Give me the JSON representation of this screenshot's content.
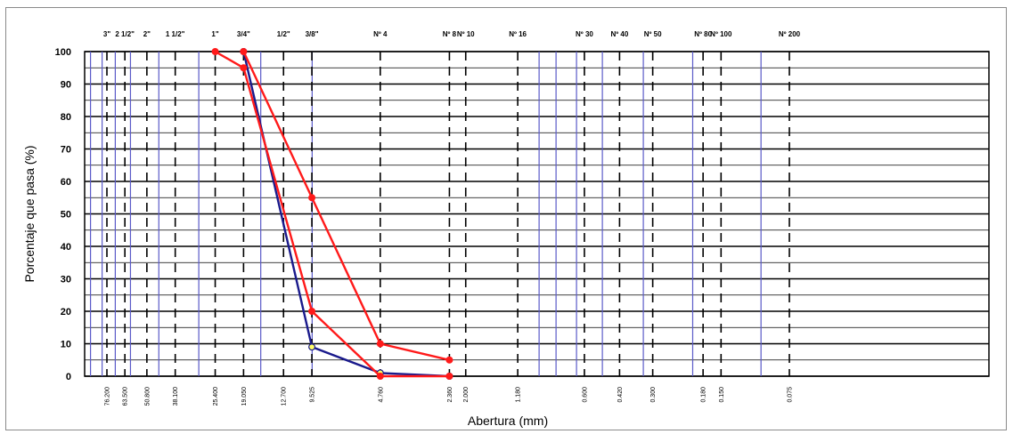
{
  "chart_data": {
    "type": "line",
    "xlabel": "Abertura (mm)",
    "ylabel": "Porcentaje que pasa (%)",
    "x_scale": "log",
    "ylim": [
      0,
      100
    ],
    "yticks": [
      0,
      10,
      20,
      30,
      40,
      50,
      60,
      70,
      80,
      90,
      100
    ],
    "grid": true,
    "sieves": [
      {
        "name": "3\"",
        "opening": "76.200",
        "value": 76.2
      },
      {
        "name": "2 1/2\"",
        "opening": "63.500",
        "value": 63.5
      },
      {
        "name": "2\"",
        "opening": "50.800",
        "value": 50.8
      },
      {
        "name": "1 1/2\"",
        "opening": "38.100",
        "value": 38.1
      },
      {
        "name": "1\"",
        "opening": "25.400",
        "value": 25.4
      },
      {
        "name": "3/4\"",
        "opening": "19.050",
        "value": 19.05
      },
      {
        "name": "1/2\"",
        "opening": "12.700",
        "value": 12.7
      },
      {
        "name": "3/8\"",
        "opening": "9.525",
        "value": 9.525
      },
      {
        "name": "Nº 4",
        "opening": "4.760",
        "value": 4.76
      },
      {
        "name": "Nº 8",
        "opening": "2.360",
        "value": 2.36
      },
      {
        "name": "Nº 10",
        "opening": "2.000",
        "value": 2.0
      },
      {
        "name": "Nº 16",
        "opening": "1.180",
        "value": 1.18
      },
      {
        "name": "Nº 30",
        "opening": "0.600",
        "value": 0.6
      },
      {
        "name": "Nº 40",
        "opening": "0.420",
        "value": 0.42
      },
      {
        "name": "Nº 50",
        "opening": "0.300",
        "value": 0.3
      },
      {
        "name": "Nº 80",
        "opening": "0.180",
        "value": 0.18
      },
      {
        "name": "Nº 100",
        "opening": "0.150",
        "value": 0.15
      },
      {
        "name": "Nº 200",
        "opening": "0.075",
        "value": 0.075
      }
    ],
    "series": [
      {
        "name": "",
        "color": "#1a1a8c",
        "marker_color": "#ffff66",
        "points": [
          [
            19.05,
            100
          ],
          [
            9.525,
            9
          ],
          [
            4.76,
            1
          ],
          [
            2.36,
            0
          ]
        ]
      },
      {
        "name": "",
        "color": "#ff1a1a",
        "marker_color": "#ff1a1a",
        "points": [
          [
            25.4,
            100
          ],
          [
            19.05,
            95
          ],
          [
            9.525,
            20
          ],
          [
            4.76,
            0
          ],
          [
            2.36,
            0
          ]
        ]
      },
      {
        "name": "",
        "color": "#ff1a1a",
        "marker_color": "#ff1a1a",
        "points": [
          [
            19.05,
            100
          ],
          [
            9.525,
            55
          ],
          [
            4.76,
            10
          ],
          [
            2.36,
            5
          ]
        ]
      }
    ]
  }
}
